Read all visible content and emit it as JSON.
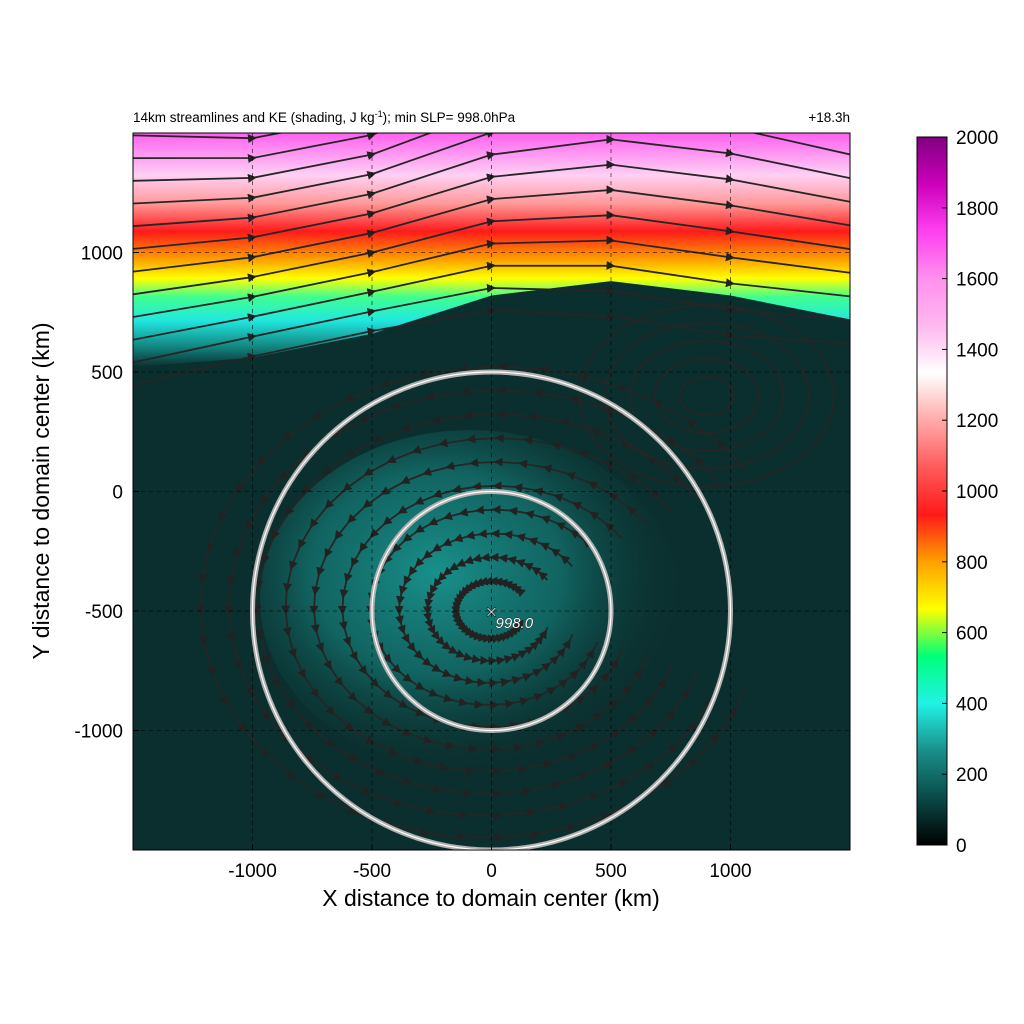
{
  "chart_data": {
    "type": "heatmap",
    "title": "14km streamlines and KE (shading, J kg",
    "title_sup": "-1",
    "title_suffix": "); min SLP= 998.0hPa",
    "time_label": "+18.3h",
    "xlabel": "X distance to domain center (km)",
    "ylabel": "Y distance to domain center (km)",
    "xlim": [
      -1500,
      1500
    ],
    "ylim": [
      -1500,
      1500
    ],
    "x_ticks": [
      -1000,
      -500,
      0,
      500,
      1000
    ],
    "y_ticks": [
      -1000,
      -500,
      0,
      500,
      1000
    ],
    "x_tick_labels": [
      "-1000",
      "-500",
      "0",
      "500",
      "1000"
    ],
    "y_tick_labels": [
      "-1000",
      "-500",
      "0",
      "500",
      "1000"
    ],
    "grid": true,
    "colorbar": {
      "min": 0,
      "max": 2000,
      "ticks": [
        0,
        200,
        400,
        600,
        800,
        1000,
        1200,
        1400,
        1600,
        1800,
        2000
      ],
      "tick_labels": [
        "0",
        "200",
        "400",
        "600",
        "800",
        "1000",
        "1200",
        "1400",
        "1600",
        "1800",
        "2000"
      ],
      "colors": [
        "#000000",
        "#0a4a48",
        "#1a8f8a",
        "#21f2e6",
        "#00ff7a",
        "#ffff00",
        "#ffa000",
        "#ff1a1a",
        "#ff5a5a",
        "#ffaaaa",
        "#ffffff",
        "#ffb8f0",
        "#ff90ee",
        "#ff40f0",
        "#cc00bb",
        "#800080"
      ]
    },
    "storm_center": {
      "x": 0,
      "y": -500,
      "min_slp_label": "998.0"
    },
    "range_rings_km": [
      500,
      1000
    ],
    "ke_field": {
      "description_units": "J kg-1",
      "jet_axis": [
        [
          -1500,
          1080
        ],
        [
          -1000,
          1120
        ],
        [
          -500,
          1220
        ],
        [
          0,
          1380
        ],
        [
          500,
          1440
        ],
        [
          1000,
          1380
        ],
        [
          1500,
          1280
        ]
      ],
      "background_ke": 60,
      "inner_core_ke": 230
    }
  }
}
